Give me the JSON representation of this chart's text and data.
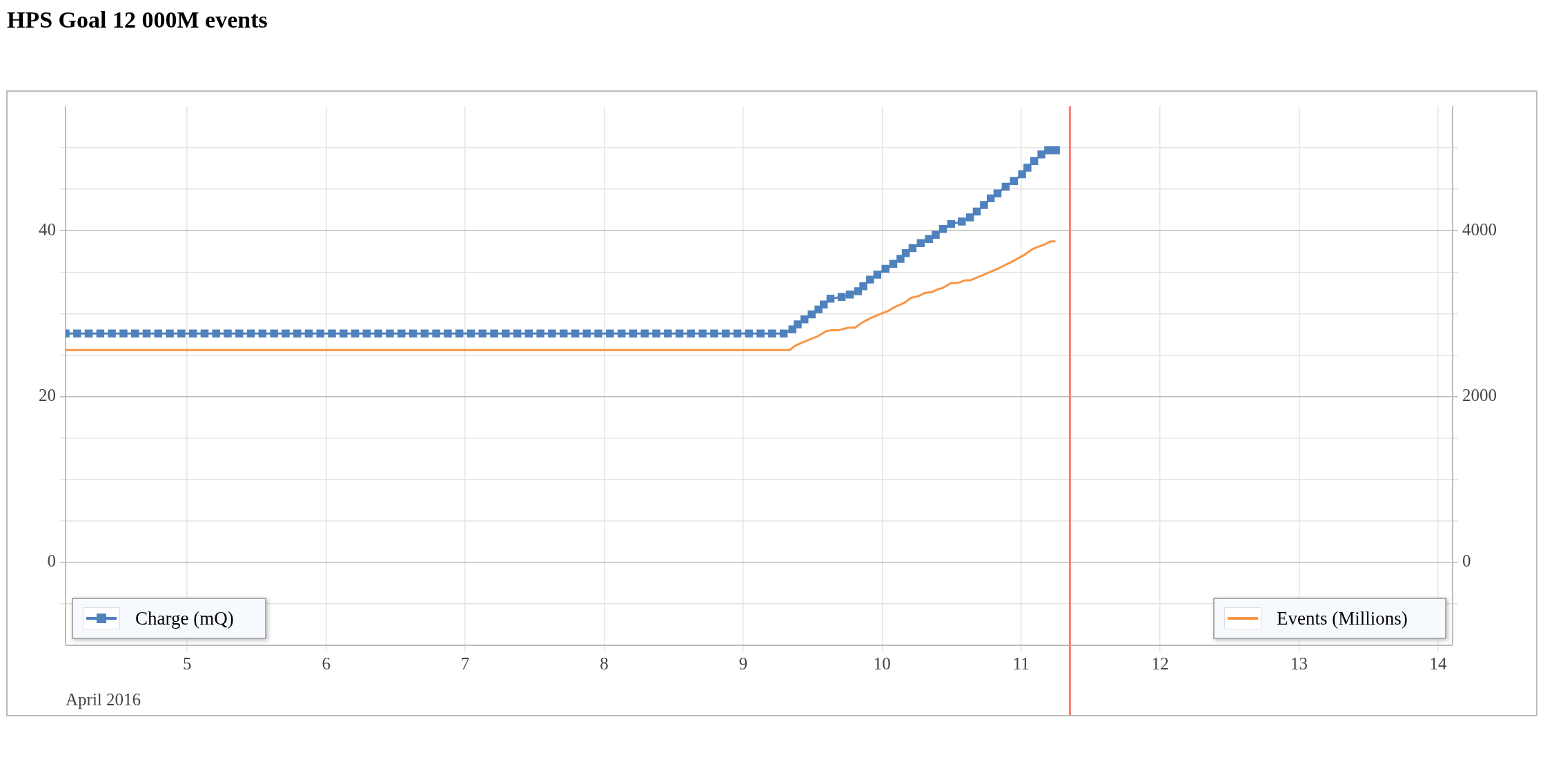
{
  "chart_data": {
    "type": "line",
    "title": "HPS Goal 12 000M events",
    "xlabel": "April 2016",
    "xlim": [
      "2016-04-04T03:00",
      "2016-04-14T02:30"
    ],
    "xticks": [
      {
        "value": "2016-04-05",
        "label": "5"
      },
      {
        "value": "2016-04-06",
        "label": "6"
      },
      {
        "value": "2016-04-07",
        "label": "7"
      },
      {
        "value": "2016-04-08",
        "label": "8"
      },
      {
        "value": "2016-04-09",
        "label": "9"
      },
      {
        "value": "2016-04-10",
        "label": "10"
      },
      {
        "value": "2016-04-11",
        "label": "11"
      },
      {
        "value": "2016-04-12",
        "label": "12"
      },
      {
        "value": "2016-04-13",
        "label": "13"
      },
      {
        "value": "2016-04-14",
        "label": "14"
      }
    ],
    "ylim": [
      -10,
      55
    ],
    "yticks": [
      {
        "value": -5,
        "label": null
      },
      0,
      {
        "value": 5,
        "label": null
      },
      {
        "value": 10,
        "label": null
      },
      {
        "value": 15,
        "label": null
      },
      20,
      {
        "value": 25,
        "label": null
      },
      {
        "value": 30,
        "label": null
      },
      {
        "value": 35,
        "label": null
      },
      40,
      {
        "value": 45,
        "label": null
      },
      {
        "value": 50,
        "label": null
      }
    ],
    "y2lim": [
      -1000,
      5500
    ],
    "y2ticks": [
      {
        "value": -500,
        "label": null
      },
      0,
      {
        "value": 500,
        "label": null
      },
      {
        "value": 1000,
        "label": null
      },
      {
        "value": 1500,
        "label": null
      },
      2000,
      {
        "value": 2500,
        "label": null
      },
      {
        "value": 3000,
        "label": null
      },
      {
        "value": 3500,
        "label": null
      },
      4000,
      {
        "value": 4500,
        "label": null
      },
      {
        "value": 5000,
        "label": null
      }
    ],
    "grid": true,
    "legend": "bottom",
    "ref_lines": [
      {
        "axis": "x",
        "value": "2016-04-11T08:25",
        "color": "#ff7b73"
      }
    ],
    "series": [
      {
        "name": "Charge (mQ)",
        "color": "#4f81bd",
        "marker": "square",
        "x": [
          "2016-04-04T03:00",
          "2016-04-04T05:00",
          "2016-04-04T07:00",
          "2016-04-04T09:00",
          "2016-04-04T11:00",
          "2016-04-04T13:00",
          "2016-04-04T15:00",
          "2016-04-04T17:00",
          "2016-04-04T19:00",
          "2016-04-04T21:00",
          "2016-04-04T23:00",
          "2016-04-05T01:00",
          "2016-04-05T03:00",
          "2016-04-05T05:00",
          "2016-04-05T07:00",
          "2016-04-05T09:00",
          "2016-04-05T11:00",
          "2016-04-05T13:00",
          "2016-04-05T15:00",
          "2016-04-05T17:00",
          "2016-04-05T19:00",
          "2016-04-05T21:00",
          "2016-04-05T23:00",
          "2016-04-06T01:00",
          "2016-04-06T03:00",
          "2016-04-06T05:00",
          "2016-04-06T07:00",
          "2016-04-06T09:00",
          "2016-04-06T11:00",
          "2016-04-06T13:00",
          "2016-04-06T15:00",
          "2016-04-06T17:00",
          "2016-04-06T19:00",
          "2016-04-06T21:00",
          "2016-04-06T23:00",
          "2016-04-07T01:00",
          "2016-04-07T03:00",
          "2016-04-07T05:00",
          "2016-04-07T07:00",
          "2016-04-07T09:00",
          "2016-04-07T11:00",
          "2016-04-07T13:00",
          "2016-04-07T15:00",
          "2016-04-07T17:00",
          "2016-04-07T19:00",
          "2016-04-07T21:00",
          "2016-04-07T23:00",
          "2016-04-08T01:00",
          "2016-04-08T03:00",
          "2016-04-08T05:00",
          "2016-04-08T07:00",
          "2016-04-08T09:00",
          "2016-04-08T11:00",
          "2016-04-08T13:00",
          "2016-04-08T15:00",
          "2016-04-08T17:00",
          "2016-04-08T19:00",
          "2016-04-08T21:00",
          "2016-04-08T23:00",
          "2016-04-09T01:00",
          "2016-04-09T03:00",
          "2016-04-09T05:00",
          "2016-04-09T07:00",
          "2016-04-09T08:30",
          "2016-04-09T09:25",
          "2016-04-09T10:35",
          "2016-04-09T11:50",
          "2016-04-09T13:00",
          "2016-04-09T13:55",
          "2016-04-09T15:05",
          "2016-04-09T17:00",
          "2016-04-09T18:25",
          "2016-04-09T19:50",
          "2016-04-09T20:45",
          "2016-04-09T21:55",
          "2016-04-09T23:10",
          "2016-04-10T00:35",
          "2016-04-10T01:55",
          "2016-04-10T03:10",
          "2016-04-10T04:05",
          "2016-04-10T05:15",
          "2016-04-10T06:40",
          "2016-04-10T08:05",
          "2016-04-10T09:15",
          "2016-04-10T10:30",
          "2016-04-10T11:55",
          "2016-04-10T13:45",
          "2016-04-10T15:10",
          "2016-04-10T16:20",
          "2016-04-10T17:35",
          "2016-04-10T18:45",
          "2016-04-10T19:55",
          "2016-04-10T21:20",
          "2016-04-10T22:45",
          "2016-04-11T00:10",
          "2016-04-11T01:05",
          "2016-04-11T02:15",
          "2016-04-11T03:30",
          "2016-04-11T04:40",
          "2016-04-11T06:00"
        ],
        "values": [
          27.6,
          27.6,
          27.6,
          27.6,
          27.6,
          27.6,
          27.6,
          27.6,
          27.6,
          27.6,
          27.6,
          27.6,
          27.6,
          27.6,
          27.6,
          27.6,
          27.6,
          27.6,
          27.6,
          27.6,
          27.6,
          27.6,
          27.6,
          27.6,
          27.6,
          27.6,
          27.6,
          27.6,
          27.6,
          27.6,
          27.6,
          27.6,
          27.6,
          27.6,
          27.6,
          27.6,
          27.6,
          27.6,
          27.6,
          27.6,
          27.6,
          27.6,
          27.6,
          27.6,
          27.6,
          27.6,
          27.6,
          27.6,
          27.6,
          27.6,
          27.6,
          27.6,
          27.6,
          27.6,
          27.6,
          27.6,
          27.6,
          27.6,
          27.6,
          27.6,
          27.6,
          27.6,
          27.6,
          28.1,
          28.7,
          29.3,
          29.9,
          30.5,
          31.1,
          31.8,
          32.0,
          32.3,
          32.7,
          33.3,
          34.1,
          34.7,
          35.4,
          36.0,
          36.6,
          37.3,
          37.9,
          38.5,
          39.0,
          39.5,
          40.2,
          40.8,
          41.1,
          41.6,
          42.3,
          43.1,
          43.9,
          44.5,
          45.3,
          46.0,
          46.8,
          47.6,
          48.4,
          49.2,
          49.7,
          49.7
        ]
      },
      {
        "name": "Events (Millions)",
        "color": "#f79646",
        "marker": "none",
        "axis": "y2",
        "x": [
          "2016-04-04T03:00",
          "2016-04-09T08:00",
          "2016-04-09T09:10",
          "2016-04-09T10:50",
          "2016-04-09T13:00",
          "2016-04-09T14:25",
          "2016-04-09T15:20",
          "2016-04-09T16:30",
          "2016-04-09T18:10",
          "2016-04-09T19:20",
          "2016-04-09T20:45",
          "2016-04-09T22:10",
          "2016-04-09T23:50",
          "2016-04-10T01:00",
          "2016-04-10T02:10",
          "2016-04-10T03:50",
          "2016-04-10T05:00",
          "2016-04-10T06:15",
          "2016-04-10T07:25",
          "2016-04-10T08:35",
          "2016-04-10T09:30",
          "2016-04-10T10:30",
          "2016-04-10T11:55",
          "2016-04-10T13:05",
          "2016-04-10T14:15",
          "2016-04-10T15:10",
          "2016-04-10T17:35",
          "2016-04-10T19:55",
          "2016-04-10T22:15",
          "2016-04-11T00:35",
          "2016-04-11T02:00",
          "2016-04-11T03:55",
          "2016-04-11T05:05",
          "2016-04-11T05:55"
        ],
        "values": [
          2560,
          2560,
          2620,
          2670,
          2730,
          2790,
          2800,
          2800,
          2830,
          2830,
          2900,
          2950,
          3000,
          3030,
          3080,
          3130,
          3190,
          3210,
          3250,
          3260,
          3290,
          3310,
          3370,
          3370,
          3400,
          3400,
          3470,
          3540,
          3620,
          3710,
          3780,
          3830,
          3870,
          3870
        ]
      }
    ]
  }
}
